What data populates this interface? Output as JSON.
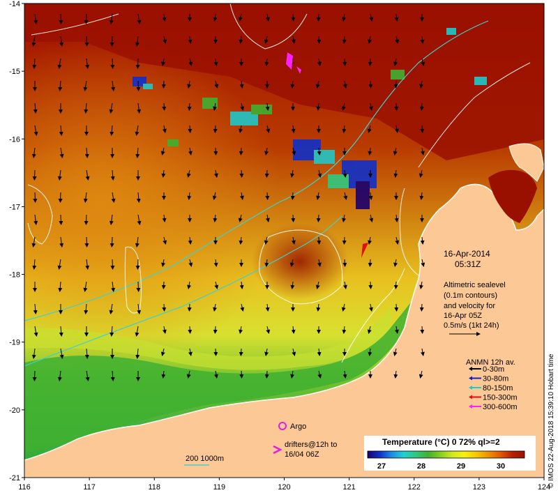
{
  "map": {
    "x_ticks": [
      "116",
      "117",
      "118",
      "119",
      "120",
      "121",
      "122",
      "123",
      "124"
    ],
    "y_ticks": [
      "-14",
      "-15",
      "-16",
      "-17",
      "-18",
      "-19",
      "-20",
      "-21"
    ]
  },
  "date_box": {
    "date": "16-Apr-2014",
    "time": "05:31Z"
  },
  "sealevel_note": {
    "lines": [
      "Altimetric sealevel",
      "(0.1m contours)",
      "and velocity for",
      "16-Apr 05Z",
      "0.5m/s (1kt 24h)"
    ]
  },
  "anmn_legend": {
    "title": "ANMN 12h av.",
    "items": [
      {
        "label": "0-30m",
        "color": "#000000"
      },
      {
        "label": "30-80m",
        "color": "#1020d0"
      },
      {
        "label": "80-150m",
        "color": "#20c8c8"
      },
      {
        "label": "150-300m",
        "color": "#e01010"
      },
      {
        "label": "300-600m",
        "color": "#ff20ff"
      }
    ]
  },
  "argo": {
    "label": "Argo",
    "color": "#e020e0"
  },
  "drifters": {
    "line1": "drifters@12h to",
    "line2": "16/04 06Z",
    "color": "#e020e0"
  },
  "bathy": {
    "label": "200  1000m"
  },
  "colorbar": {
    "title": "Temperature (°C) 0 72% ql>=2",
    "ticks": [
      "27",
      "28",
      "29",
      "30"
    ],
    "colors": [
      "#1a006e",
      "#1030c8",
      "#1c8ce6",
      "#20d0d0",
      "#30c880",
      "#40b030",
      "#80d020",
      "#d0e820",
      "#f8f010",
      "#f8c800",
      "#f09000",
      "#e05a00",
      "#b82000",
      "#9a1000"
    ]
  },
  "credit": "© IMOS 22-Aug-2018 15:39:10 Hobart time"
}
